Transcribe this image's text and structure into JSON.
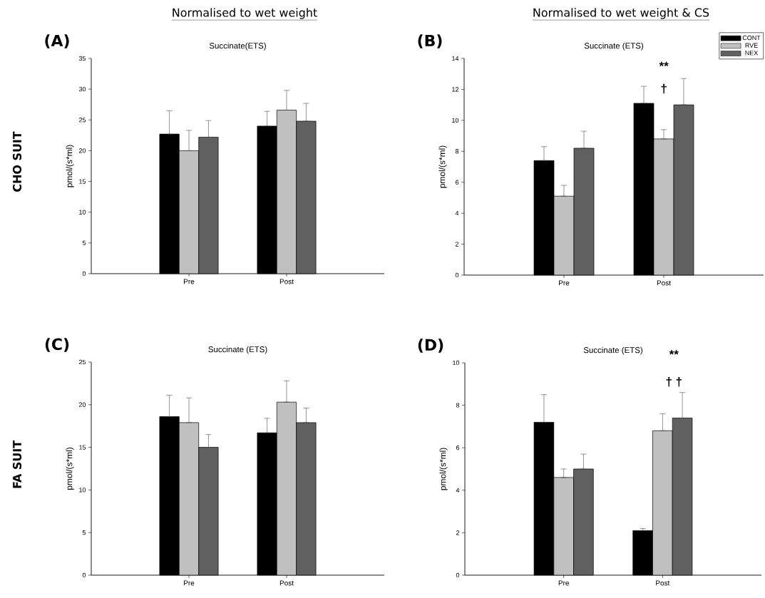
{
  "chart_data": [
    {
      "type": "bar",
      "title": "Succinate(ETS)",
      "ylabel": "pmol/(s*ml)",
      "categories": [
        "Pre",
        "Post"
      ],
      "series": [
        {
          "color": "#000000",
          "values": [
            22.7,
            24.0
          ],
          "errors": [
            [
              22.7,
              26.5
            ],
            [
              24.0,
              26.4
            ]
          ]
        },
        {
          "color": "#c0c0c0",
          "values": [
            20.0,
            26.6
          ],
          "errors": [
            [
              20.0,
              23.3
            ],
            [
              26.6,
              29.8
            ]
          ]
        },
        {
          "color": "#606060",
          "values": [
            22.2,
            24.8
          ],
          "errors": [
            [
              22.2,
              24.9
            ],
            [
              24.8,
              27.7
            ]
          ]
        }
      ],
      "ylim": [
        0,
        35
      ],
      "yticks": [
        0,
        5,
        10,
        15,
        20,
        25,
        30,
        35
      ],
      "annotations": [
        "(A)",
        "Normalised to wet weight",
        "CHO SUIT"
      ]
    },
    {
      "type": "bar",
      "title": "Succinate (ETS)",
      "ylabel": "pmol/(s*ml)",
      "categories": [
        "Pre",
        "Post"
      ],
      "series": [
        {
          "name": "CONT",
          "color": "#000000",
          "values": [
            7.4,
            11.1
          ],
          "errors": [
            [
              7.4,
              8.3
            ],
            [
              11.1,
              12.2
            ]
          ]
        },
        {
          "name": "RVE",
          "color": "#c0c0c0",
          "values": [
            5.1,
            8.8
          ],
          "errors": [
            [
              5.1,
              5.8
            ],
            [
              8.8,
              9.4
            ]
          ]
        },
        {
          "name": "NEX",
          "color": "#606060",
          "values": [
            8.2,
            11.0
          ],
          "errors": [
            [
              8.2,
              9.3
            ],
            [
              11.0,
              12.7
            ]
          ]
        }
      ],
      "ylim": [
        0,
        14
      ],
      "yticks": [
        0,
        2,
        4,
        6,
        8,
        10,
        12,
        14
      ],
      "legend": "top right",
      "annotations": [
        "(B)",
        "Normalised to wet weight & CS",
        "**",
        "†"
      ]
    },
    {
      "type": "bar",
      "title": "Succinate (ETS)",
      "ylabel": "pmol/(s*ml)",
      "categories": [
        "Pre",
        "Post"
      ],
      "series": [
        {
          "color": "#000000",
          "values": [
            18.6,
            16.7
          ],
          "errors": [
            [
              18.6,
              21.1
            ],
            [
              16.7,
              18.4
            ]
          ]
        },
        {
          "color": "#c0c0c0",
          "values": [
            17.9,
            20.3
          ],
          "errors": [
            [
              17.9,
              20.8
            ],
            [
              20.3,
              22.8
            ]
          ]
        },
        {
          "color": "#606060",
          "values": [
            15.0,
            17.9
          ],
          "errors": [
            [
              15.0,
              16.5
            ],
            [
              17.9,
              19.6
            ]
          ]
        }
      ],
      "ylim": [
        0,
        25
      ],
      "yticks": [
        0,
        5,
        10,
        15,
        20,
        25
      ],
      "annotations": [
        "(C)",
        "FA SUIT"
      ]
    },
    {
      "type": "bar",
      "title": "Succinate (ETS)",
      "ylabel": "pmol/(s*ml)",
      "categories": [
        "Pre",
        "Post"
      ],
      "series": [
        {
          "color": "#000000",
          "values": [
            7.2,
            2.1
          ],
          "errors": [
            [
              7.2,
              8.5
            ],
            [
              2.1,
              2.2
            ]
          ]
        },
        {
          "color": "#c0c0c0",
          "values": [
            4.6,
            6.8
          ],
          "errors": [
            [
              4.6,
              5.0
            ],
            [
              6.8,
              7.6
            ]
          ]
        },
        {
          "color": "#606060",
          "values": [
            5.0,
            7.4
          ],
          "errors": [
            [
              5.0,
              5.7
            ],
            [
              7.4,
              8.6
            ]
          ]
        }
      ],
      "ylim": [
        0,
        10
      ],
      "yticks": [
        0,
        2,
        4,
        6,
        8,
        10
      ],
      "annotations": [
        "(D)",
        "**",
        "† †"
      ]
    }
  ]
}
